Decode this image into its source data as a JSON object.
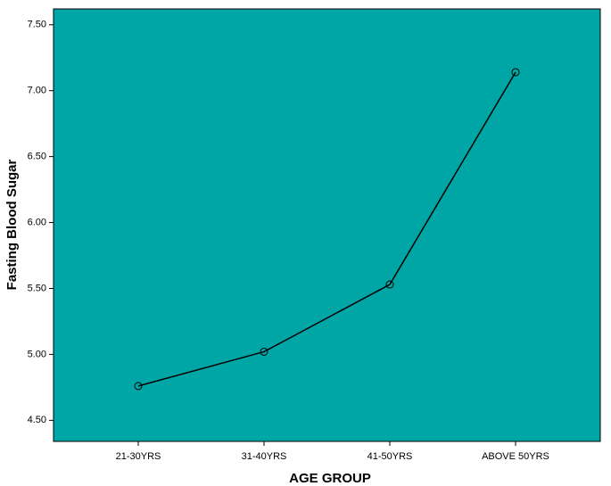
{
  "chart_data": {
    "type": "line",
    "x_label": "AGE GROUP",
    "y_label": "Fasting Blood Sugar",
    "categories": [
      "21-30YRS",
      "31-40YRS",
      "41-50YRS",
      "ABOVE 50YRS"
    ],
    "series": [
      {
        "color": "#000000",
        "values": [
          4.76,
          5.02,
          5.53,
          7.14
        ]
      }
    ],
    "ylim": [
      4.34,
      7.62
    ],
    "yticks": [
      {
        "value": 4.5,
        "label": "4.50"
      },
      {
        "value": 5.0,
        "label": "5.00"
      },
      {
        "value": 5.5,
        "label": "5.50"
      },
      {
        "value": 6.0,
        "label": "6.00"
      },
      {
        "value": 6.5,
        "label": "6.50"
      },
      {
        "value": 7.0,
        "label": "7.00"
      },
      {
        "value": 7.5,
        "label": "7.50"
      }
    ],
    "plot_background": "#00a6a6"
  }
}
